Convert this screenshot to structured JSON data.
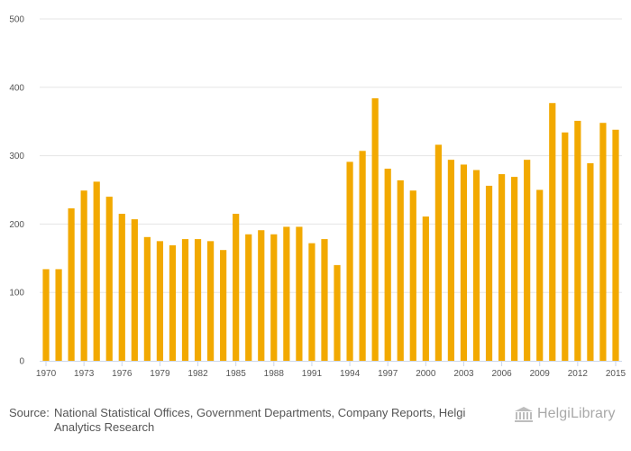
{
  "colors": {
    "bar": "#f2a900",
    "grid": "#e5e5e5",
    "axis": "#ccd6eb",
    "tick_text": "#555555",
    "footer_text": "#555555",
    "logo_text": "#a9a9a9"
  },
  "chart_data": {
    "type": "bar",
    "title": "",
    "xlabel": "",
    "ylabel": "",
    "ylim": [
      0,
      500
    ],
    "y_ticks": [
      "0",
      "100",
      "200",
      "300",
      "400",
      "500"
    ],
    "x": [
      1970,
      1971,
      1972,
      1973,
      1974,
      1975,
      1976,
      1977,
      1978,
      1979,
      1980,
      1981,
      1982,
      1983,
      1984,
      1985,
      1986,
      1987,
      1988,
      1989,
      1990,
      1991,
      1992,
      1993,
      1994,
      1995,
      1996,
      1997,
      1998,
      1999,
      2000,
      2001,
      2002,
      2003,
      2004,
      2005,
      2006,
      2007,
      2008,
      2009,
      2010,
      2011,
      2012,
      2013,
      2014,
      2015
    ],
    "x_tick_labels": [
      "1970",
      "1973",
      "1976",
      "1979",
      "1982",
      "1985",
      "1988",
      "1991",
      "1994",
      "1997",
      "2000",
      "2003",
      "2006",
      "2009",
      "2012",
      "2015"
    ],
    "values": [
      134,
      134,
      223,
      249,
      262,
      240,
      215,
      207,
      181,
      175,
      169,
      178,
      178,
      175,
      162,
      215,
      185,
      191,
      185,
      196,
      196,
      172,
      178,
      140,
      291,
      307,
      384,
      281,
      264,
      249,
      211,
      316,
      294,
      287,
      279,
      256,
      273,
      269,
      294,
      250,
      377,
      334,
      351,
      289,
      348,
      338
    ],
    "grid": true,
    "legend": "none"
  },
  "footer": {
    "source_prefix": "Source:",
    "source_text": "National Statistical Offices, Government Departments, Company Reports, Helgi Analytics Research"
  },
  "logo": {
    "text": "HelgiLibrary",
    "icon": "library-building-icon"
  }
}
